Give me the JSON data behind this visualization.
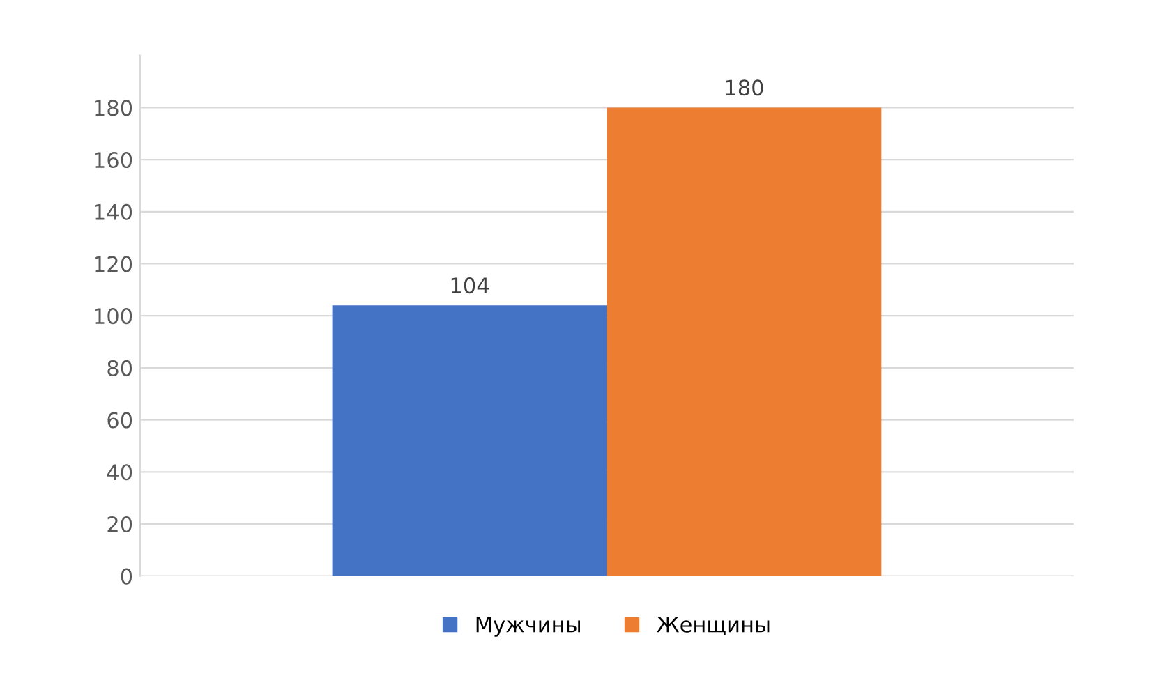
{
  "chart_data": {
    "type": "bar",
    "categories": [
      null,
      null
    ],
    "series": [
      {
        "name": "Мужчины",
        "color": "#4472c4",
        "values": [
          104,
          null
        ]
      },
      {
        "name": "Женщины",
        "color": "#ed7d31",
        "values": [
          null,
          180
        ]
      }
    ],
    "ylim": [
      0,
      200
    ],
    "yticks": [
      0,
      20,
      40,
      60,
      80,
      100,
      120,
      140,
      160,
      180
    ],
    "grid": "y",
    "legend": "bottom",
    "data_labels": true
  }
}
